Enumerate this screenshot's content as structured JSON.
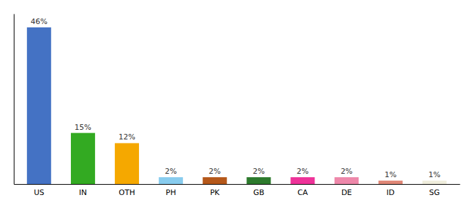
{
  "chart_data": {
    "type": "bar",
    "categories": [
      "US",
      "IN",
      "OTH",
      "PH",
      "PK",
      "GB",
      "CA",
      "DE",
      "ID",
      "SG"
    ],
    "values": [
      46,
      15,
      12,
      2,
      2,
      2,
      2,
      2,
      1,
      1
    ],
    "value_labels": [
      "46%",
      "15%",
      "12%",
      "2%",
      "2%",
      "2%",
      "2%",
      "2%",
      "1%",
      "1%"
    ],
    "colors": [
      "#4472c4",
      "#33aa22",
      "#f5a800",
      "#88ccee",
      "#b5581a",
      "#2d7a2d",
      "#ee3399",
      "#ee88aa",
      "#e08878",
      "#f0eedd"
    ],
    "ylim": [
      0,
      50
    ],
    "data_labels": true,
    "tick_labels": "x",
    "grid": false
  }
}
